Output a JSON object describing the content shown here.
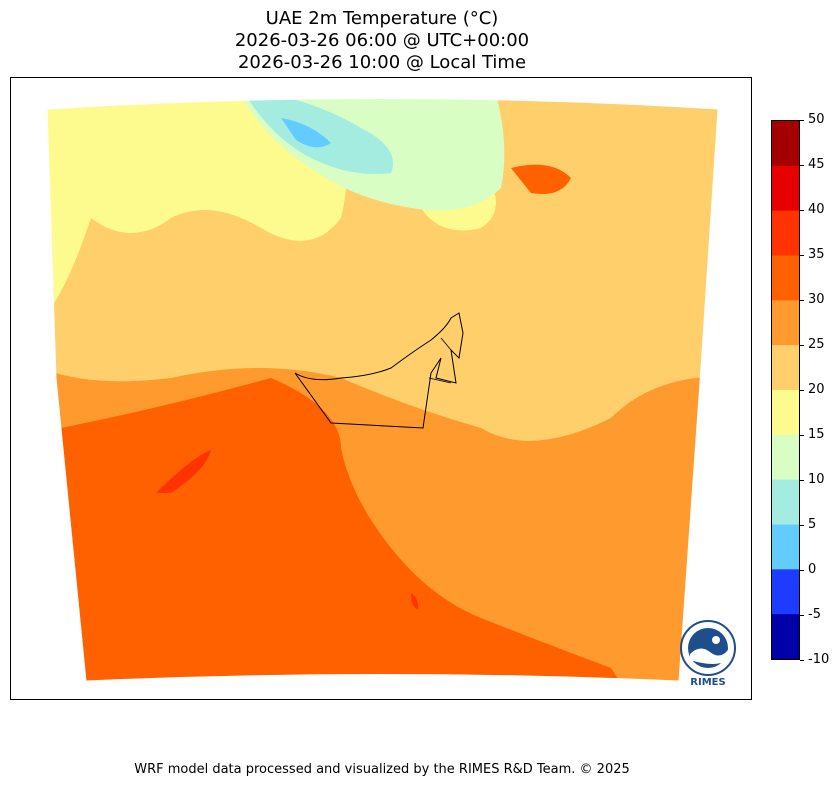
{
  "title": {
    "line1": "UAE 2m Temperature (°C)",
    "line2": "2026-03-26 06:00 @ UTC+00:00",
    "line3": "2026-03-26 10:00 @ Local Time"
  },
  "colorbar": {
    "ticks": [
      "50",
      "45",
      "40",
      "35",
      "30",
      "25",
      "20",
      "15",
      "10",
      "5",
      "0",
      "-5",
      "-10"
    ],
    "bins": [
      {
        "min": 45,
        "max": 50,
        "color": "#a50000"
      },
      {
        "min": 40,
        "max": 45,
        "color": "#e60000"
      },
      {
        "min": 35,
        "max": 40,
        "color": "#ff3300"
      },
      {
        "min": 30,
        "max": 35,
        "color": "#ff6000"
      },
      {
        "min": 25,
        "max": 30,
        "color": "#fe9a2e"
      },
      {
        "min": 20,
        "max": 25,
        "color": "#fecf6a"
      },
      {
        "min": 15,
        "max": 20,
        "color": "#fefb8e"
      },
      {
        "min": 10,
        "max": 15,
        "color": "#d8fec4"
      },
      {
        "min": 5,
        "max": 10,
        "color": "#a5ece0"
      },
      {
        "min": 0,
        "max": 5,
        "color": "#63ccff"
      },
      {
        "min": -5,
        "max": 0,
        "color": "#1e3cff"
      },
      {
        "min": -10,
        "max": -5,
        "color": "#0000a8"
      }
    ]
  },
  "logo": {
    "text": "RIMES"
  },
  "footer": "WRF model data processed and visualized by the RIMES R&D Team. © 2025"
}
